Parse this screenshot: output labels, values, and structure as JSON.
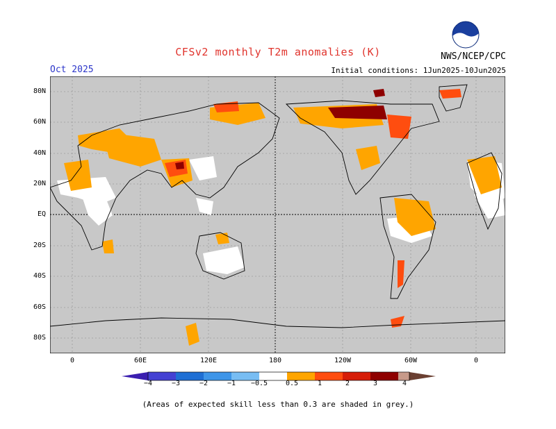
{
  "header": {
    "title": "CFSv2 monthly T2m anomalies (K)",
    "org": "NWS/NCEP/CPC",
    "logo_text": "NOAA",
    "month": "Oct 2025",
    "init": "Initial conditions: 1Jun2025-10Jun2025"
  },
  "map": {
    "lat_labels": [
      "80N",
      "60N",
      "40N",
      "20N",
      "EQ",
      "20S",
      "40S",
      "60S",
      "80S"
    ],
    "lon_labels": [
      "0",
      "60E",
      "120E",
      "180",
      "120W",
      "60W",
      "0"
    ],
    "colors": {
      "ocean": "#c8c8c8",
      "land_skill": "#ffffff",
      "coast": "#000000"
    }
  },
  "colorbar": {
    "labels": [
      "−4",
      "−3",
      "−2",
      "−1",
      "−0.5",
      "0.5",
      "1",
      "2",
      "3",
      "4"
    ],
    "colors": [
      "#3b1fb0",
      "#4441d3",
      "#1f6fd4",
      "#3e95e8",
      "#78bdf3",
      "#ffffff",
      "#ffa500",
      "#ff4d0f",
      "#d61d08",
      "#8e0000",
      "#c79a8a",
      "#6b4032"
    ]
  },
  "footer": {
    "note": "(Areas of expected skill less than 0.3 are shaded in grey.)"
  }
}
